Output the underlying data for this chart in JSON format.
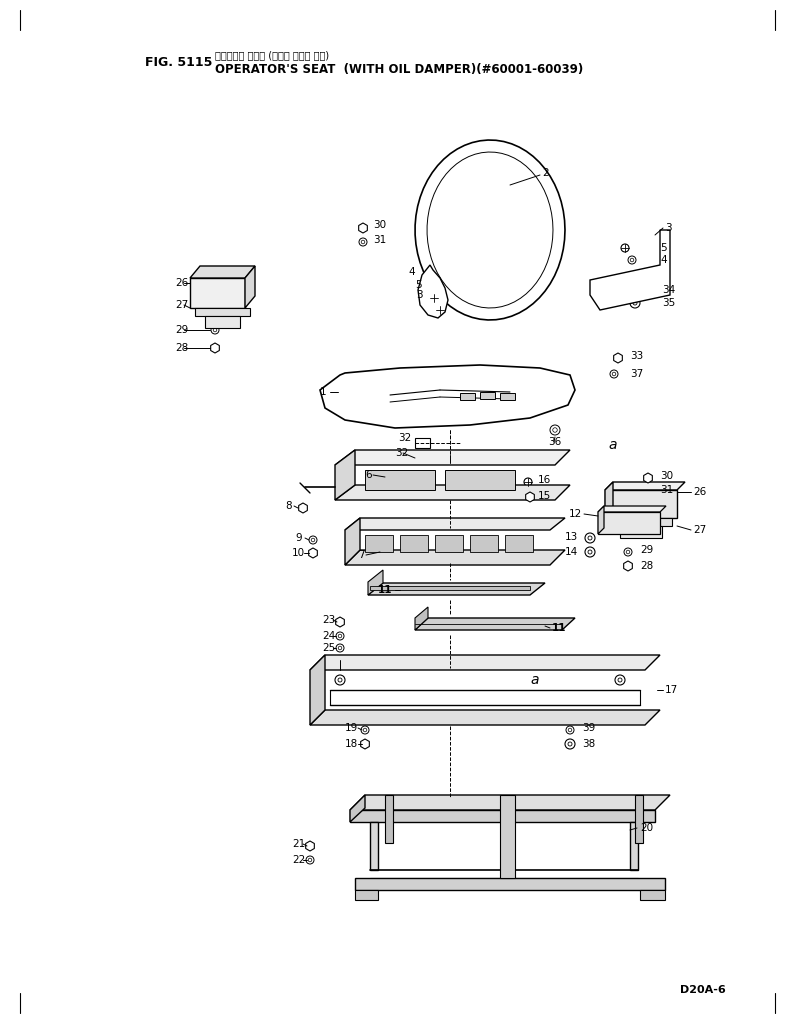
{
  "title_japanese": "オペレータ シート (オイル ダンパ 付き)",
  "title_english": "OPERATOR'S SEAT  (WITH OIL DAMPER)(#60001-60039)",
  "fig_label": "FIG. 5115",
  "doc_ref": "D20A-6",
  "bg_color": "#ffffff",
  "lc": "#000000",
  "tc": "#000000"
}
